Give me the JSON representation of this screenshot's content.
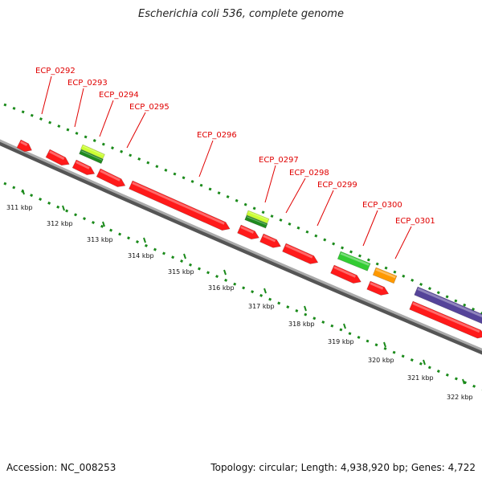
{
  "header": {
    "title": "Escherichia coli 536, complete genome"
  },
  "footer": {
    "accession": "Accession: NC_008253",
    "summary": "Topology: circular; Length: 4,938,920 bp; Genes: 4,722"
  },
  "colors": {
    "cds": "#ff1a1a",
    "rna_light": "#ccff33",
    "rna_dark": "#1f8a1f",
    "bright_green": "#33cc33",
    "orange": "#ff9900",
    "purple": "#554499",
    "backbone": "#888888",
    "ruler": "#1a8a1a",
    "label": "#e00000"
  },
  "ruler": {
    "ticks": [
      "311 kbp",
      "312 kbp",
      "313 kbp",
      "314 kbp",
      "315 kbp",
      "316 kbp",
      "317 kbp",
      "318 kbp",
      "319 kbp",
      "320 kbp",
      "321 kbp",
      "322 kbp"
    ]
  },
  "genes": [
    {
      "name": "ECP_0292"
    },
    {
      "name": "ECP_0293"
    },
    {
      "name": "ECP_0294"
    },
    {
      "name": "ECP_0295"
    },
    {
      "name": "ECP_0296"
    },
    {
      "name": "ECP_0297"
    },
    {
      "name": "ECP_0298"
    },
    {
      "name": "ECP_0299"
    },
    {
      "name": "ECP_0300"
    },
    {
      "name": "ECP_0301"
    }
  ]
}
